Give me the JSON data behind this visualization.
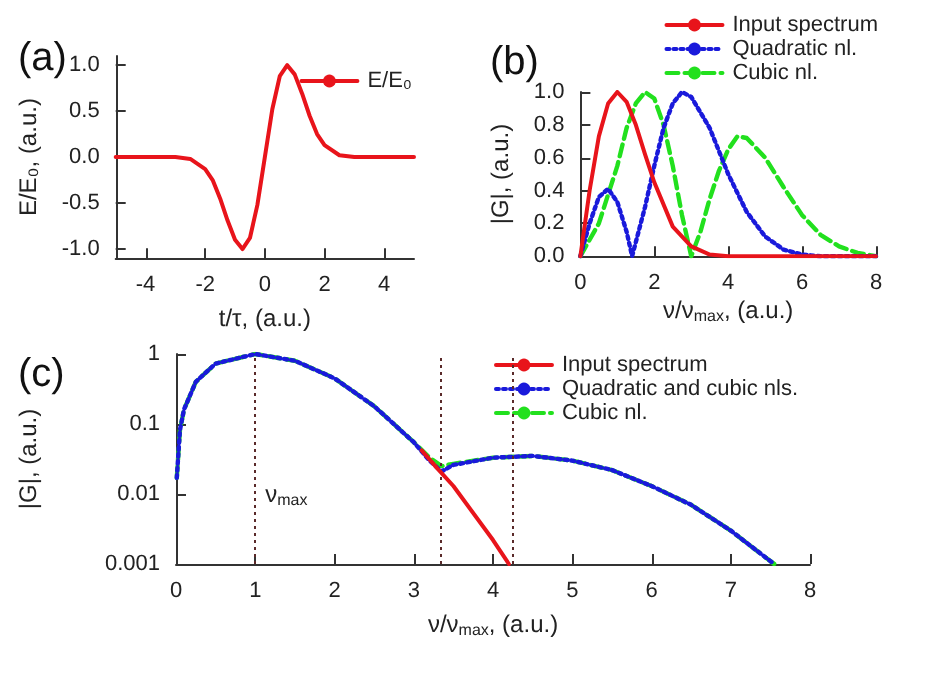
{
  "chart_data": [
    {
      "type": "line",
      "title": "(a)",
      "xlabel": "t/τ, (a.u.)",
      "ylabel": "E/E₀, (a.u.)",
      "marker": "none",
      "legend": "top right",
      "xlim": [
        -5,
        5
      ],
      "xticks": [
        -4,
        -2,
        0,
        2,
        4
      ],
      "ylim": [
        -1.1,
        1.1
      ],
      "yticks": [
        {
          "value": -1,
          "label": "-1.0"
        },
        {
          "value": -0.5,
          "label": "-0.5"
        },
        {
          "value": 0,
          "label": "0.0"
        },
        {
          "value": 0.5,
          "label": "0.5"
        },
        {
          "value": 1,
          "label": "1.0"
        }
      ],
      "series": [
        {
          "name": "E/E₀",
          "color": "#e8141b",
          "line_style": "solid",
          "x": [
            -5,
            -3,
            -2.5,
            -2,
            -1.75,
            -1.5,
            -1.25,
            -1,
            -0.75,
            -0.5,
            -0.25,
            0,
            0.25,
            0.5,
            0.75,
            1,
            1.25,
            1.5,
            1.75,
            2,
            2.5,
            3,
            5
          ],
          "values": [
            0,
            0,
            -0.02,
            -0.13,
            -0.25,
            -0.45,
            -0.69,
            -0.9,
            -1,
            -0.88,
            -0.52,
            0,
            0.52,
            0.88,
            1,
            0.9,
            0.69,
            0.45,
            0.25,
            0.13,
            0.02,
            0,
            0
          ]
        }
      ]
    },
    {
      "type": "line",
      "title": "(b)",
      "xlabel": "ν/ν$_{max}$, (a.u.)",
      "ylabel": "|G|, (a.u.)",
      "marker": "none",
      "legend": "top right",
      "xlim": [
        0,
        8
      ],
      "xticks": [
        0,
        2,
        4,
        6,
        8
      ],
      "ylim": [
        0,
        1
      ],
      "yticks": [
        {
          "value": 0,
          "label": "0.0"
        },
        {
          "value": 0.2,
          "label": "0.2"
        },
        {
          "value": 0.4,
          "label": "0.4"
        },
        {
          "value": 0.6,
          "label": "0.6"
        },
        {
          "value": 0.8,
          "label": "0.8"
        },
        {
          "value": 1,
          "label": "1.0"
        }
      ],
      "series": [
        {
          "name": "Input spectrum",
          "color": "#e8141b",
          "line_style": "solid",
          "x": [
            0,
            0.25,
            0.5,
            0.75,
            1,
            1.25,
            1.5,
            1.75,
            2,
            2.5,
            3,
            3.5,
            4,
            5,
            8
          ],
          "values": [
            0,
            0.4,
            0.73,
            0.93,
            1,
            0.94,
            0.8,
            0.62,
            0.45,
            0.18,
            0.06,
            0.01,
            0,
            0,
            0
          ]
        },
        {
          "name": "Quadratic nl.",
          "color": "#1a1adb",
          "line_style": "dotted",
          "x": [
            0,
            0.25,
            0.5,
            0.75,
            1,
            1.25,
            1.4,
            1.75,
            2,
            2.25,
            2.5,
            2.75,
            3,
            3.5,
            4,
            4.5,
            5,
            5.5,
            6,
            6.5,
            8
          ],
          "values": [
            0,
            0.2,
            0.36,
            0.41,
            0.33,
            0.15,
            0,
            0.3,
            0.55,
            0.78,
            0.93,
            1,
            0.97,
            0.78,
            0.5,
            0.27,
            0.12,
            0.04,
            0.01,
            0,
            0
          ]
        },
        {
          "name": "Cubic nl.",
          "color": "#22e01e",
          "line_style": "dashed",
          "x": [
            0,
            0.5,
            1,
            1.25,
            1.5,
            1.75,
            2,
            2.25,
            2.5,
            2.75,
            3,
            3.25,
            3.5,
            3.75,
            4,
            4.25,
            4.5,
            5,
            5.5,
            6,
            6.5,
            7,
            7.5,
            8
          ],
          "values": [
            0,
            0.2,
            0.55,
            0.78,
            0.93,
            1,
            0.96,
            0.8,
            0.55,
            0.25,
            0,
            0.15,
            0.35,
            0.52,
            0.65,
            0.73,
            0.72,
            0.6,
            0.42,
            0.25,
            0.13,
            0.06,
            0.02,
            0
          ]
        }
      ]
    },
    {
      "type": "line",
      "title": "(c)",
      "xlabel": "ν/ν$_{max}$, (a.u.)",
      "ylabel": "|G|, (a.u.)",
      "marker": "none",
      "legend": "top right",
      "log": "y",
      "xlim": [
        0,
        8
      ],
      "xticks": [
        0,
        1,
        2,
        3,
        4,
        5,
        6,
        7,
        8
      ],
      "ylim": [
        0.001,
        1
      ],
      "yticks": [
        0.001,
        0.01,
        0.1,
        1
      ],
      "ref_lines": [
        {
          "axis": "x",
          "value": 1,
          "color": "#5a2a2a",
          "line_style": "dotted"
        },
        {
          "axis": "x",
          "value": 3.35,
          "color": "#5a2a2a",
          "line_style": "dotted"
        },
        {
          "axis": "x",
          "value": 4.25,
          "color": "#5a2a2a",
          "line_style": "dotted"
        }
      ],
      "annotations": [
        {
          "text": "ν$_{max}$",
          "x": 1,
          "y": 0.01
        }
      ],
      "series": [
        {
          "name": "Input spectrum",
          "color": "#e8141b",
          "line_style": "solid",
          "x": [
            3.1,
            3.3,
            3.5,
            4,
            4.2
          ],
          "values": [
            0.042,
            0.023,
            0.013,
            0.0022,
            0.001
          ]
        },
        {
          "name": "Quadratic and cubic nls.",
          "color": "#1a1adb",
          "line_style": "dotted",
          "x": [
            0.01,
            0.05,
            0.1,
            0.25,
            0.5,
            1,
            1.5,
            2,
            2.5,
            3,
            3.2,
            3.35,
            3.5,
            4,
            4.5,
            5,
            5.5,
            6,
            6.5,
            7,
            7.5,
            7.55
          ],
          "values": [
            0.017,
            0.082,
            0.16,
            0.4,
            0.73,
            1,
            0.8,
            0.45,
            0.18,
            0.055,
            0.03,
            0.021,
            0.026,
            0.033,
            0.035,
            0.03,
            0.022,
            0.013,
            0.007,
            0.003,
            0.0011,
            0.001
          ]
        },
        {
          "name": "Cubic nl.",
          "color": "#22e01e",
          "line_style": "dashed",
          "x": [
            0.01,
            0.05,
            0.1,
            0.25,
            0.5,
            1,
            1.5,
            2,
            2.5,
            3,
            3.2,
            3.35,
            3.5,
            4,
            4.5,
            5,
            5.5,
            6,
            6.5,
            7,
            7.5,
            7.55
          ],
          "values": [
            0.017,
            0.082,
            0.16,
            0.4,
            0.73,
            1,
            0.8,
            0.45,
            0.18,
            0.055,
            0.033,
            0.025,
            0.027,
            0.033,
            0.035,
            0.03,
            0.022,
            0.013,
            0.007,
            0.003,
            0.0011,
            0.001
          ]
        }
      ]
    }
  ]
}
